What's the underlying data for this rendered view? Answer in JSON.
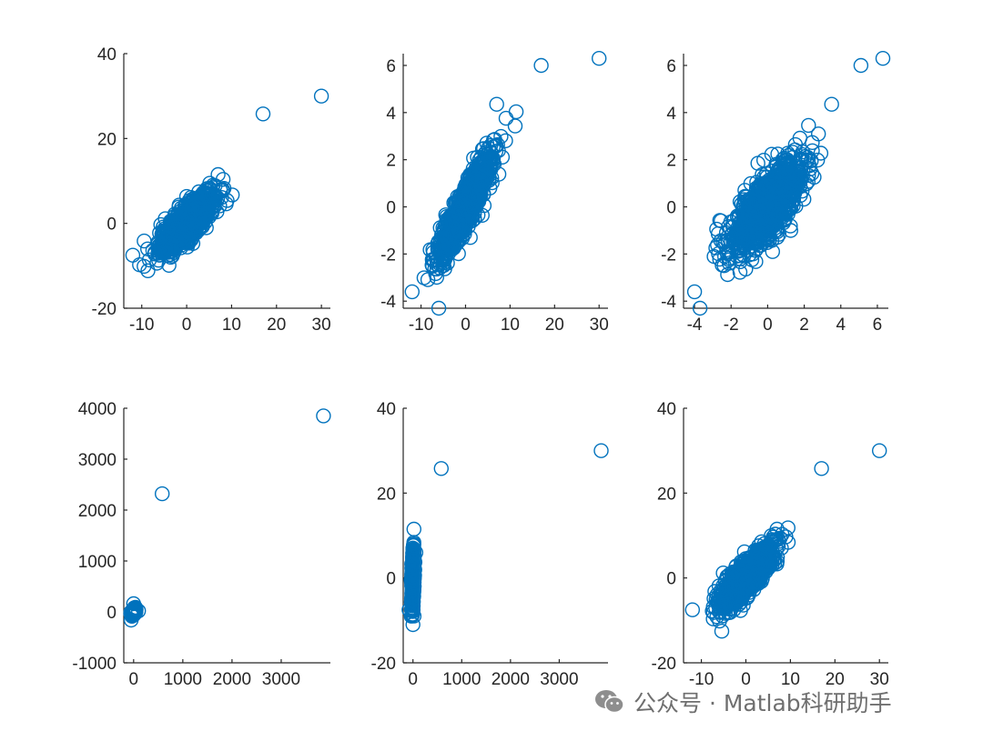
{
  "watermark": {
    "text": "公众号 · Matlab科研助手",
    "icon": "wechat-icon"
  },
  "colors": {
    "marker": "#0072BD",
    "axis": "#262626",
    "watermark": "#6f6f6f"
  },
  "chart_data": [
    {
      "type": "scatter",
      "title": "",
      "xlabel": "",
      "ylabel": "",
      "xlim": [
        -14,
        32
      ],
      "ylim": [
        -20,
        40
      ],
      "xticks": [
        -10,
        0,
        10,
        20,
        30
      ],
      "yticks": [
        -20,
        0,
        20,
        40
      ],
      "cloud": {
        "n": 1000,
        "x_sd": 3,
        "corr": 0.75,
        "y_fn": "x + noise(sd 2)"
      },
      "highlight_points": [
        [
          -12,
          -7.5
        ],
        [
          7,
          11.5
        ],
        [
          17,
          25.8
        ],
        [
          30,
          30
        ]
      ],
      "series": [
        {
          "marker": "open-circle"
        }
      ]
    },
    {
      "type": "scatter",
      "title": "",
      "xlabel": "",
      "ylabel": "",
      "xlim": [
        -14,
        32
      ],
      "ylim": [
        -4.3,
        6.5
      ],
      "xticks": [
        -10,
        0,
        10,
        20,
        30
      ],
      "yticks": [
        -4,
        -2,
        0,
        2,
        4,
        6
      ],
      "cloud": {
        "n": 1000,
        "x_sd": 3,
        "corr": 0.9,
        "y_fn": "0.33x + noise"
      },
      "highlight_points": [
        [
          -12,
          -3.6
        ],
        [
          7,
          4.35
        ],
        [
          17,
          6.0
        ],
        [
          30,
          6.3
        ],
        [
          -6,
          -4.3
        ]
      ],
      "series": [
        {
          "marker": "open-circle"
        }
      ]
    },
    {
      "type": "scatter",
      "title": "",
      "xlabel": "",
      "ylabel": "",
      "xlim": [
        -4.6,
        6.6
      ],
      "ylim": [
        -4.3,
        6.5
      ],
      "xticks": [
        -4,
        -2,
        0,
        2,
        4,
        6
      ],
      "yticks": [
        -4,
        -2,
        0,
        2,
        4,
        6
      ],
      "cloud": {
        "n": 1000,
        "x_sd": 1,
        "corr": 0.75,
        "y_fn": "0.75x + noise"
      },
      "highlight_points": [
        [
          -4,
          -3.6
        ],
        [
          3.5,
          4.35
        ],
        [
          5.1,
          6.0
        ],
        [
          6.3,
          6.3
        ],
        [
          -3.7,
          -4.3
        ]
      ],
      "series": [
        {
          "marker": "open-circle"
        }
      ]
    },
    {
      "type": "scatter",
      "title": "",
      "xlabel": "",
      "ylabel": "",
      "xlim": [
        -200,
        4000
      ],
      "ylim": [
        -1000,
        4000
      ],
      "xticks": [
        0,
        1000,
        2000,
        3000
      ],
      "yticks": [
        -1000,
        0,
        1000,
        2000,
        3000,
        4000
      ],
      "cloud": {
        "n": 300,
        "x_sd": 20,
        "corr": 0.7,
        "y_fn": "x + noise"
      },
      "highlight_points": [
        [
          -60,
          -30
        ],
        [
          0,
          160
        ],
        [
          -50,
          -160
        ],
        [
          100,
          20
        ],
        [
          20,
          60
        ],
        [
          580,
          2320
        ],
        [
          3860,
          3850
        ]
      ],
      "series": [
        {
          "marker": "open-circle"
        }
      ]
    },
    {
      "type": "scatter",
      "title": "",
      "xlabel": "",
      "ylabel": "",
      "xlim": [
        -200,
        4000
      ],
      "ylim": [
        -20,
        40
      ],
      "xticks": [
        0,
        1000,
        2000,
        3000
      ],
      "yticks": [
        -20,
        0,
        20,
        40
      ],
      "cloud": {
        "n": 800,
        "x_sd": 12,
        "corr": 0.75,
        "y_fn": "x + noise"
      },
      "highlight_points": [
        [
          -80,
          -7.5
        ],
        [
          20,
          11.5
        ],
        [
          580,
          25.8
        ],
        [
          3860,
          30
        ],
        [
          0,
          -11
        ],
        [
          60,
          6
        ]
      ],
      "series": [
        {
          "marker": "open-circle"
        }
      ]
    },
    {
      "type": "scatter",
      "title": "",
      "xlabel": "",
      "ylabel": "",
      "xlim": [
        -14,
        32
      ],
      "ylim": [
        -20,
        40
      ],
      "xticks": [
        -10,
        0,
        10,
        20,
        30
      ],
      "yticks": [
        -20,
        0,
        20,
        40
      ],
      "cloud": {
        "n": 1000,
        "x_sd": 3,
        "corr": 0.75,
        "y_fn": "x + noise(sd 2)"
      },
      "highlight_points": [
        [
          -12,
          -7.5
        ],
        [
          7,
          11.5
        ],
        [
          17,
          25.8
        ],
        [
          30,
          30
        ]
      ],
      "series": [
        {
          "marker": "open-circle"
        }
      ]
    }
  ]
}
